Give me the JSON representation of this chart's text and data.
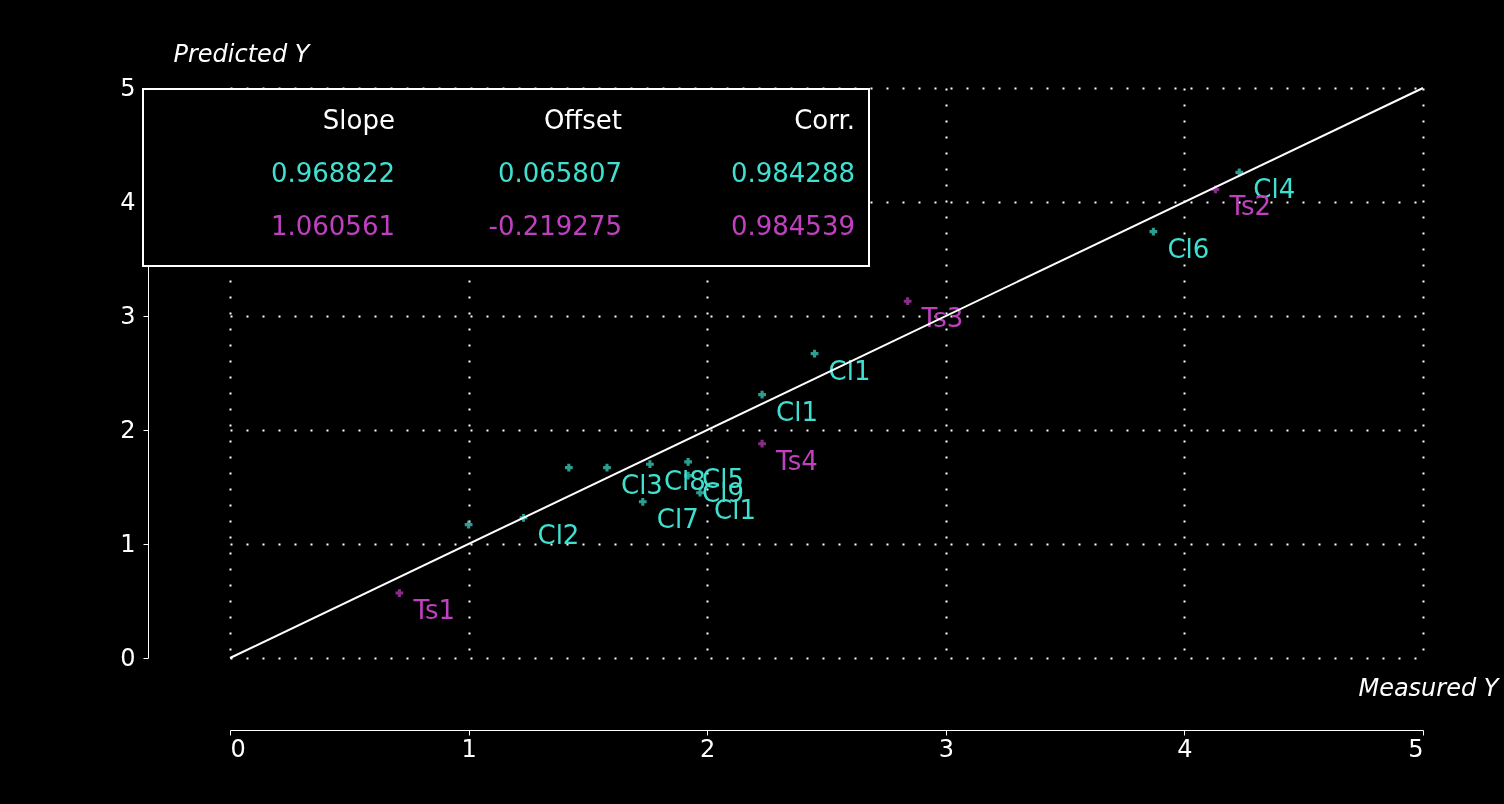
{
  "chart_data": {
    "type": "scatter",
    "xlabel": "Measured Y",
    "ylabel": "Predicted Y",
    "xlim": [
      0,
      5
    ],
    "ylim": [
      0,
      5
    ],
    "xticks": [
      0,
      1,
      2,
      3,
      4,
      5
    ],
    "yticks": [
      0,
      1,
      2,
      3,
      4,
      5
    ],
    "grid": true,
    "marker": "cross",
    "annotations": [
      "Slope",
      "Offset",
      "Corr.",
      "0.968822",
      "0.065807",
      "0.984288",
      "1.060561",
      "-0.219275",
      "0.984539"
    ],
    "series": [
      {
        "color": "#40e0d0",
        "x": [
          1.0,
          1.23,
          1.42,
          1.58,
          1.73,
          1.76,
          1.92,
          1.92,
          1.97,
          2.23,
          2.45,
          3.87,
          4.23
        ],
        "values": [
          1.17,
          1.23,
          1.67,
          1.67,
          1.37,
          1.7,
          1.72,
          1.6,
          1.45,
          2.31,
          2.67,
          3.74,
          4.26
        ],
        "value_labels": [
          null,
          "Cl2",
          null,
          "Cl3",
          "Cl7",
          "Cl8",
          "Cl5",
          "Cl9",
          "Cl1",
          "Cl1",
          "Cl1",
          "Cl6",
          "Cl4"
        ]
      },
      {
        "color": "#c040c0",
        "x": [
          0.71,
          2.23,
          2.84,
          4.13
        ],
        "values": [
          0.57,
          1.88,
          3.13,
          4.11
        ],
        "value_labels": [
          "Ts1",
          "Ts4",
          "Ts3",
          "Ts2"
        ]
      },
      {
        "type": "line",
        "color": "#ffffff",
        "line_style": "solid",
        "marker": "none",
        "x": [
          0,
          5
        ],
        "values": [
          0,
          5
        ]
      }
    ]
  }
}
